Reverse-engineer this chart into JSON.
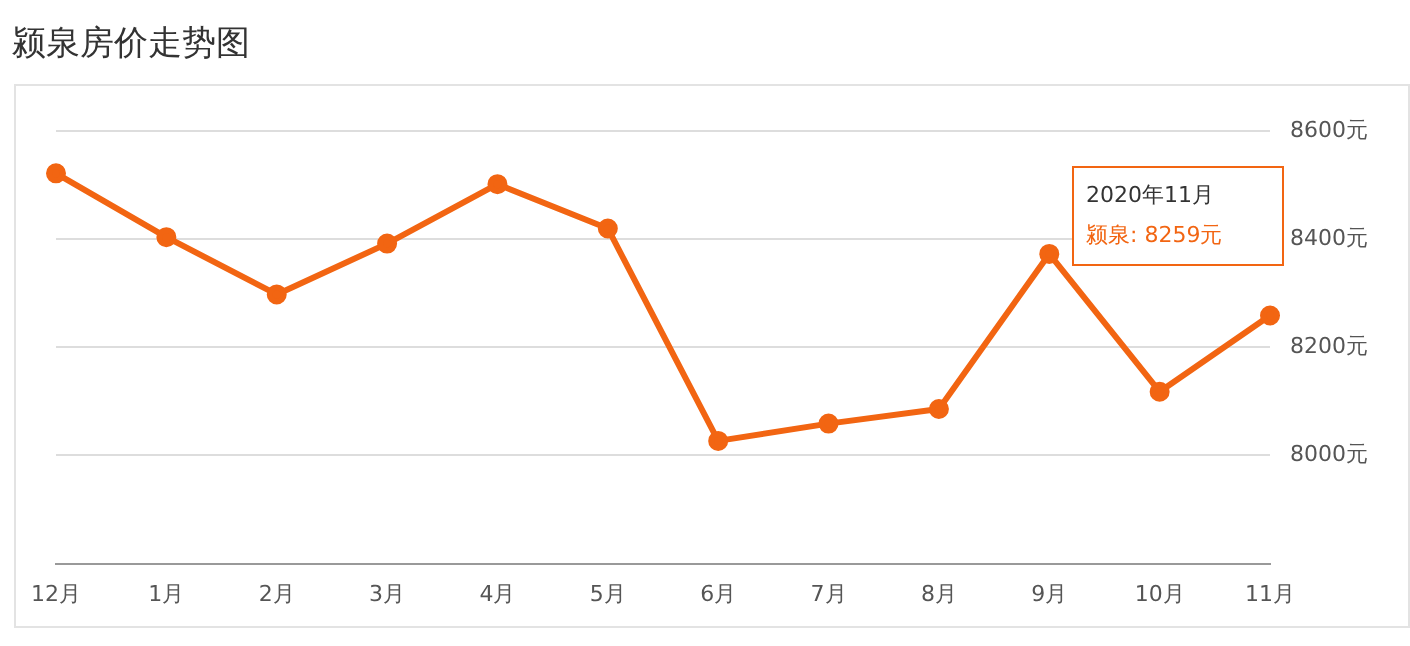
{
  "chart_data": {
    "type": "line",
    "title": "颍泉房价走势图",
    "categories": [
      "12月",
      "1月",
      "2月",
      "3月",
      "4月",
      "5月",
      "6月",
      "7月",
      "8月",
      "9月",
      "10月",
      "11月"
    ],
    "series": [
      {
        "color": "#f26512",
        "values": [
          8522,
          8404,
          8298,
          8392,
          8502,
          8420,
          8027,
          8059,
          8086,
          8373,
          8118,
          8259
        ]
      }
    ],
    "ylim": [
      7800,
      8600
    ],
    "yticks": [
      {
        "value": 7800,
        "label": null
      },
      {
        "value": 8000,
        "label": "8000元"
      },
      {
        "value": 8200,
        "label": "8200元"
      },
      {
        "value": 8400,
        "label": "8400元"
      },
      {
        "value": 8600,
        "label": "8600元"
      }
    ],
    "grid": "y",
    "marker": "circle",
    "line_style": "solid",
    "legend": false,
    "annotations": [
      "2020年11月",
      "颍泉:  8259元"
    ]
  }
}
